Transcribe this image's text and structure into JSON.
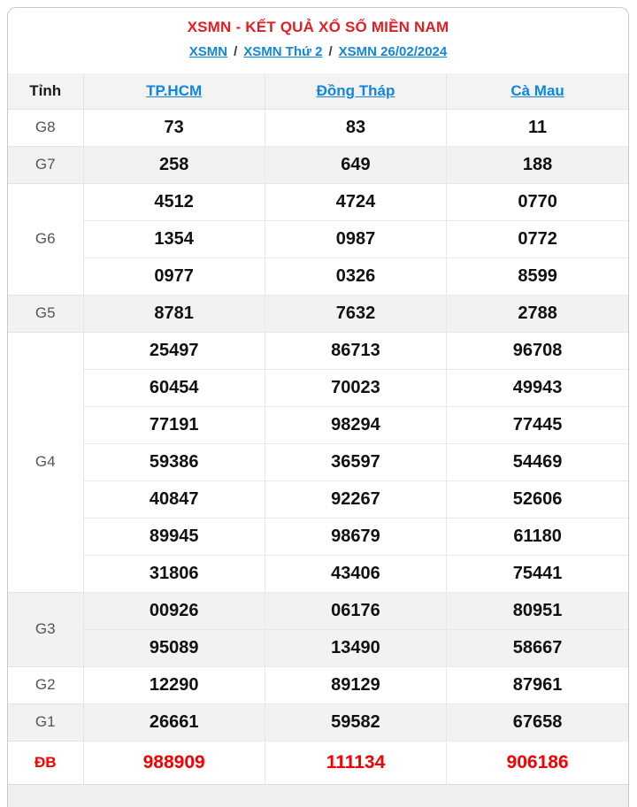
{
  "page": {
    "title": "XSMN - KẾT QUẢ XỔ SỐ MIỀN NAM",
    "breadcrumb": [
      "XSMN",
      "XSMN Thứ 2",
      "XSMN 26/02/2024"
    ],
    "breadcrumb_separator": "/"
  },
  "table": {
    "corner_header": "Tỉnh",
    "columns": [
      "TP.HCM",
      "Đồng Tháp",
      "Cà Mau"
    ],
    "rows": [
      {
        "prize": "G8",
        "shaded": false,
        "special": false,
        "lines": [
          [
            "73",
            "83",
            "11"
          ]
        ]
      },
      {
        "prize": "G7",
        "shaded": true,
        "special": false,
        "lines": [
          [
            "258",
            "649",
            "188"
          ]
        ]
      },
      {
        "prize": "G6",
        "shaded": false,
        "special": false,
        "lines": [
          [
            "4512",
            "4724",
            "0770"
          ],
          [
            "1354",
            "0987",
            "0772"
          ],
          [
            "0977",
            "0326",
            "8599"
          ]
        ]
      },
      {
        "prize": "G5",
        "shaded": true,
        "special": false,
        "lines": [
          [
            "8781",
            "7632",
            "2788"
          ]
        ]
      },
      {
        "prize": "G4",
        "shaded": false,
        "special": false,
        "lines": [
          [
            "25497",
            "86713",
            "96708"
          ],
          [
            "60454",
            "70023",
            "49943"
          ],
          [
            "77191",
            "98294",
            "77445"
          ],
          [
            "59386",
            "36597",
            "54469"
          ],
          [
            "40847",
            "92267",
            "52606"
          ],
          [
            "89945",
            "98679",
            "61180"
          ],
          [
            "31806",
            "43406",
            "75441"
          ]
        ]
      },
      {
        "prize": "G3",
        "shaded": true,
        "special": false,
        "lines": [
          [
            "00926",
            "06176",
            "80951"
          ],
          [
            "95089",
            "13490",
            "58667"
          ]
        ]
      },
      {
        "prize": "G2",
        "shaded": false,
        "special": false,
        "lines": [
          [
            "12290",
            "89129",
            "87961"
          ]
        ]
      },
      {
        "prize": "G1",
        "shaded": true,
        "special": false,
        "lines": [
          [
            "26661",
            "59582",
            "67658"
          ]
        ]
      },
      {
        "prize": "ĐB",
        "shaded": false,
        "special": true,
        "lines": [
          [
            "988909",
            "111134",
            "906186"
          ]
        ]
      }
    ]
  },
  "colors": {
    "title_red": "#e31e24",
    "link_blue": "#1086e0",
    "special_red": "#f40000",
    "shaded_row_bg": "#f2f2f2",
    "header_row_bg": "#f3f3f3",
    "prize_label_gray": "#555555",
    "number_black": "#111111",
    "outer_border": "#c9c9c9"
  }
}
